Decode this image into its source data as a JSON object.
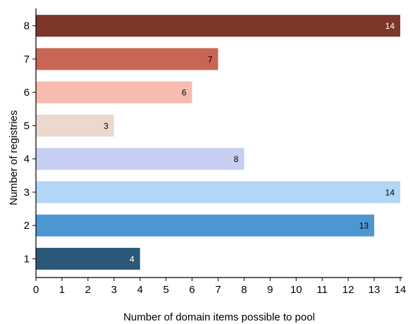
{
  "chart_data": {
    "type": "bar",
    "orientation": "horizontal",
    "categories": [
      "1",
      "2",
      "3",
      "4",
      "5",
      "6",
      "7",
      "8"
    ],
    "values": [
      4,
      13,
      14,
      8,
      3,
      6,
      7,
      14
    ],
    "colors": [
      "#2b5779",
      "#4d97d1",
      "#b1d6f6",
      "#c6cff2",
      "#ecd9ce",
      "#f7bbb0",
      "#c86653",
      "#7c3729"
    ],
    "label_colors": [
      "#ffffff",
      "#000000",
      "#000000",
      "#000000",
      "#000000",
      "#000000",
      "#000000",
      "#ffffff"
    ],
    "xlabel": "Number of domain items possible to pool",
    "ylabel": "Number of registries",
    "xlim": [
      0,
      14
    ],
    "xticks": [
      "0",
      "1",
      "2",
      "3",
      "4",
      "5",
      "6",
      "7",
      "8",
      "9",
      "10",
      "11",
      "12",
      "13",
      "14"
    ],
    "grid": false,
    "legend": "none"
  }
}
